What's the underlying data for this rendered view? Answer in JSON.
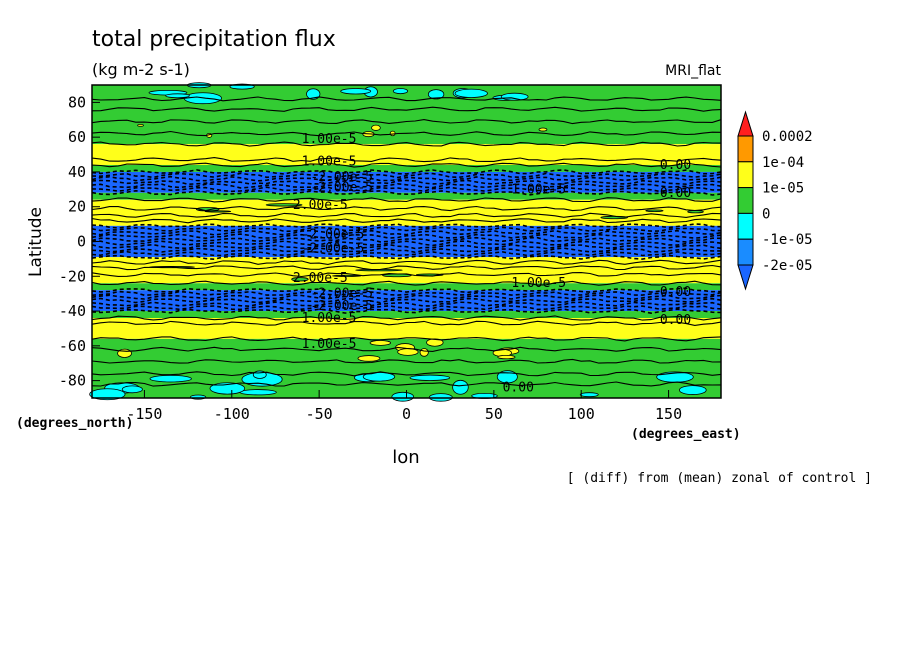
{
  "chart_data": {
    "type": "heatmap",
    "title": "total precipitation flux",
    "subtitle": "(kg m-2 s-1)",
    "model_label": "MRI_flat",
    "xlabel": "lon",
    "ylabel": "Latitude",
    "x_units": "(degrees_east)",
    "y_units": "(degrees_north)",
    "footnote": "[ (diff) from (mean) zonal of control ]",
    "xlim": [
      -180,
      180
    ],
    "ylim": [
      -90,
      90
    ],
    "x_ticks": [
      -150,
      -100,
      -50,
      0,
      50,
      100,
      150
    ],
    "y_ticks": [
      -80,
      -60,
      -40,
      -20,
      0,
      20,
      40,
      60,
      80
    ],
    "colorbar": {
      "labels": [
        "0.0002",
        "1e-04",
        "1e-05",
        "0",
        "-1e-05",
        "-2e-05"
      ],
      "colors": [
        "#ff1f1f",
        "#ff9900",
        "#ffff1a",
        "#33cc33",
        "#00ffff",
        "#1a8cff",
        "#1a66ff"
      ]
    },
    "colors": {
      "blue": "#1a66ff",
      "cyan": "#00ffff",
      "green": "#33cc33",
      "yellow": "#ffff1a"
    },
    "zonal_bands": [
      {
        "lat_from": 90,
        "lat_to": 69,
        "class": "green"
      },
      {
        "lat_from": 69,
        "lat_to": 56,
        "class": "green"
      },
      {
        "lat_from": 56,
        "lat_to": 44,
        "class": "yellow"
      },
      {
        "lat_from": 44,
        "lat_to": 40,
        "class": "green"
      },
      {
        "lat_from": 40,
        "lat_to": 28,
        "class": "blue"
      },
      {
        "lat_from": 28,
        "lat_to": 24,
        "class": "green"
      },
      {
        "lat_from": 24,
        "lat_to": 9,
        "class": "yellow"
      },
      {
        "lat_from": 9,
        "lat_to": -9,
        "class": "blue"
      },
      {
        "lat_from": -9,
        "lat_to": -24,
        "class": "yellow"
      },
      {
        "lat_from": -24,
        "lat_to": -28,
        "class": "green"
      },
      {
        "lat_from": -28,
        "lat_to": -40,
        "class": "blue"
      },
      {
        "lat_from": -40,
        "lat_to": -44,
        "class": "green"
      },
      {
        "lat_from": -44,
        "lat_to": -56,
        "class": "yellow"
      },
      {
        "lat_from": -56,
        "lat_to": -69,
        "class": "green"
      },
      {
        "lat_from": -69,
        "lat_to": -90,
        "class": "green"
      }
    ],
    "contour_labels": [
      {
        "text": "1.00e-5",
        "lon": -60,
        "lat": 59
      },
      {
        "text": "1.00e-5",
        "lon": -60,
        "lat": 46
      },
      {
        "text": "-2.00e-5",
        "lon": -55,
        "lat": 37
      },
      {
        "text": "-2.00e-5",
        "lon": -55,
        "lat": 31
      },
      {
        "text": "2.00e-5",
        "lon": -65,
        "lat": 21
      },
      {
        "text": "1.00e-5",
        "lon": 60,
        "lat": 30
      },
      {
        "text": "0.00",
        "lon": 145,
        "lat": 44
      },
      {
        "text": "0.00",
        "lon": 145,
        "lat": 28
      },
      {
        "text": "-2.00e-5",
        "lon": -60,
        "lat": 4
      },
      {
        "text": "-2.00e-5",
        "lon": -60,
        "lat": -4
      },
      {
        "text": "2.00e-5",
        "lon": -65,
        "lat": -21
      },
      {
        "text": "1.00e-5",
        "lon": 60,
        "lat": -24
      },
      {
        "text": "-2.00e-5",
        "lon": -55,
        "lat": -30
      },
      {
        "text": "-2.00e-5",
        "lon": -55,
        "lat": -37
      },
      {
        "text": "1.00e-5",
        "lon": -60,
        "lat": -44
      },
      {
        "text": "0.00",
        "lon": 145,
        "lat": -29
      },
      {
        "text": "0.00",
        "lon": 145,
        "lat": -45
      },
      {
        "text": "1.00e-5",
        "lon": -60,
        "lat": -59
      },
      {
        "text": "0.00",
        "lon": 55,
        "lat": -84
      }
    ],
    "grid": false,
    "legend": "right colorbar"
  }
}
